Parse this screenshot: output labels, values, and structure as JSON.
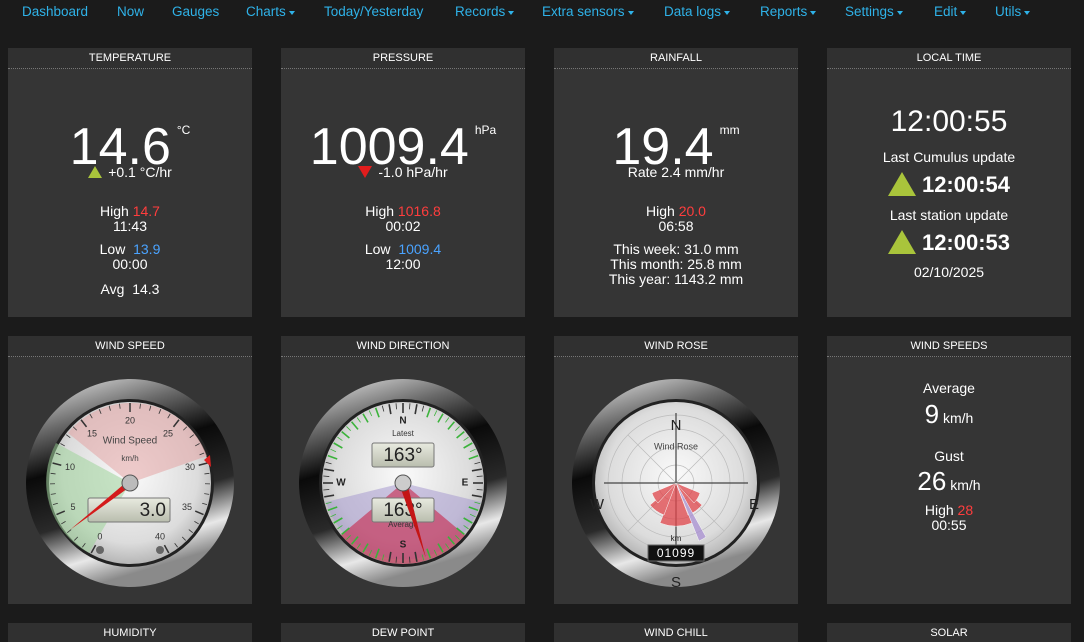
{
  "nav": [
    "Dashboard",
    "Now",
    "Gauges",
    "Charts",
    "Today/Yesterday",
    "Records",
    "Extra sensors",
    "Data logs",
    "Reports",
    "Settings",
    "Edit",
    "Utils"
  ],
  "temperature": {
    "title": "TEMPERATURE",
    "value": "14.6",
    "unit": "°C",
    "trend": "+0.1 °C/hr",
    "high_label": "High",
    "high": "14.7",
    "high_time": "11:43",
    "low_label": "Low",
    "low": "13.9",
    "low_time": "00:00",
    "avg_label": "Avg",
    "avg": "14.3"
  },
  "pressure": {
    "title": "PRESSURE",
    "value": "1009.4",
    "unit": "hPa",
    "trend": "-1.0 hPa/hr",
    "high_label": "High",
    "high": "1016.8",
    "high_time": "00:02",
    "low_label": "Low",
    "low": "1009.4",
    "low_time": "12:00"
  },
  "rainfall": {
    "title": "RAINFALL",
    "value": "19.4",
    "unit": "mm",
    "rate": "Rate 2.4 mm/hr",
    "high_label": "High",
    "high": "20.0",
    "high_time": "06:58",
    "week": "This week: 31.0 mm",
    "month": "This month: 25.8 mm",
    "year": "This year: 1143.2 mm"
  },
  "local_time": {
    "title": "LOCAL TIME",
    "time": "12:00:55",
    "cumulus_label": "Last Cumulus update",
    "cumulus_time": "12:00:54",
    "station_label": "Last station update",
    "station_time": "12:00:53",
    "date": "02/10/2025"
  },
  "wind_speed": {
    "title": "WIND SPEED",
    "gauge_title": "Wind Speed",
    "unit": "km/h",
    "scale": [
      "0",
      "5",
      "10",
      "15",
      "20",
      "25",
      "30",
      "35",
      "40"
    ],
    "display": "3.0"
  },
  "wind_direction": {
    "title": "WIND DIRECTION",
    "latest_label": "Latest",
    "latest": "163°",
    "average_label": "Average",
    "average": "163°",
    "cardinals": [
      "N",
      "E",
      "S",
      "W"
    ]
  },
  "wind_rose": {
    "title": "WIND ROSE",
    "gauge_title": "Wind Rose",
    "cardinals": [
      "N",
      "E",
      "S",
      "W"
    ],
    "unit": "km",
    "odometer": "01099"
  },
  "wind_speeds": {
    "title": "WIND SPEEDS",
    "average_label": "Average",
    "average": "9",
    "average_unit": "km/h",
    "gust_label": "Gust",
    "gust": "26",
    "gust_unit": "km/h",
    "high_label": "High",
    "high": "28",
    "high_time": "00:55"
  },
  "bottom_panels": [
    "HUMIDITY",
    "DEW POINT",
    "WIND CHILL",
    "SOLAR"
  ]
}
